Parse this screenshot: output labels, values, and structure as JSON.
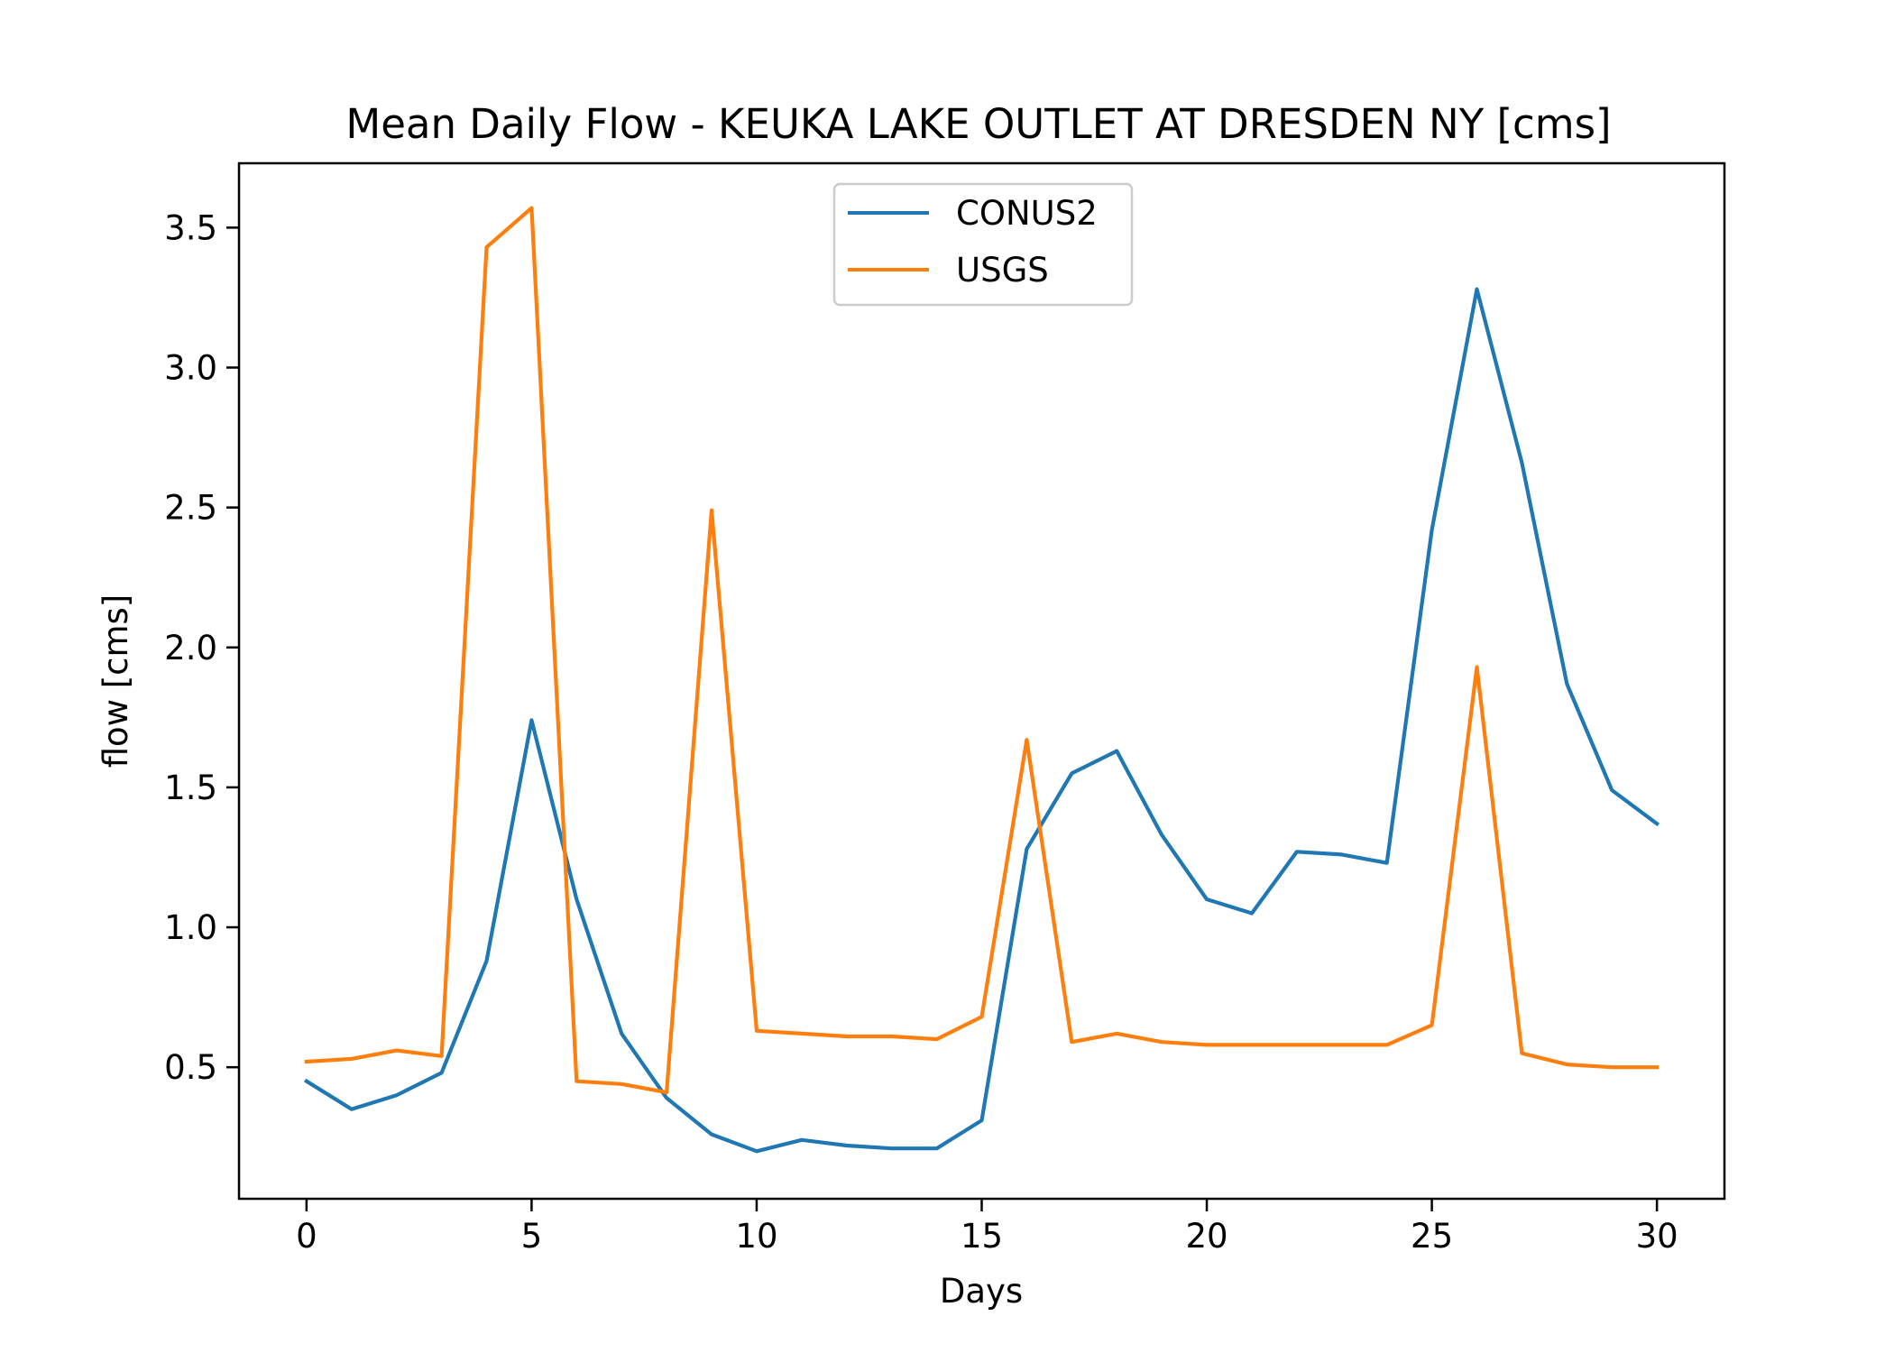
{
  "chart_data": {
    "type": "line",
    "title": "Mean Daily Flow - KEUKA LAKE OUTLET AT DRESDEN NY [cms]",
    "xlabel": "Days",
    "ylabel": "flow [cms]",
    "xlim": [
      -1.5,
      31.5
    ],
    "ylim": [
      0.03,
      3.73
    ],
    "xticks": [
      0,
      5,
      10,
      15,
      20,
      25,
      30
    ],
    "yticks": [
      0.5,
      1.0,
      1.5,
      2.0,
      2.5,
      3.0,
      3.5
    ],
    "xtick_labels": [
      "0",
      "5",
      "10",
      "15",
      "20",
      "25",
      "30"
    ],
    "ytick_labels": [
      "0.5",
      "1.0",
      "1.5",
      "2.0",
      "2.5",
      "3.0",
      "3.5"
    ],
    "legend_position": "upper center",
    "grid": false,
    "x": [
      0,
      1,
      2,
      3,
      4,
      5,
      6,
      7,
      8,
      9,
      10,
      11,
      12,
      13,
      14,
      15,
      16,
      17,
      18,
      19,
      20,
      21,
      22,
      23,
      24,
      25,
      26,
      27,
      28,
      29,
      30
    ],
    "series": [
      {
        "name": "CONUS2",
        "color": "#1f77b4",
        "values": [
          0.45,
          0.35,
          0.4,
          0.48,
          0.88,
          1.74,
          1.1,
          0.62,
          0.39,
          0.26,
          0.2,
          0.24,
          0.22,
          0.21,
          0.21,
          0.31,
          1.28,
          1.55,
          1.63,
          1.33,
          1.1,
          1.05,
          1.27,
          1.26,
          1.23,
          2.42,
          3.28,
          2.66,
          1.87,
          1.49,
          1.37
        ]
      },
      {
        "name": "USGS",
        "color": "#ff7f0e",
        "values": [
          0.52,
          0.53,
          0.56,
          0.54,
          3.43,
          3.57,
          0.45,
          0.44,
          0.41,
          2.49,
          0.63,
          0.62,
          0.61,
          0.61,
          0.6,
          0.68,
          1.67,
          0.59,
          0.62,
          0.59,
          0.58,
          0.58,
          0.58,
          0.58,
          0.58,
          0.65,
          1.93,
          0.55,
          0.51,
          0.5,
          0.5
        ]
      }
    ]
  }
}
